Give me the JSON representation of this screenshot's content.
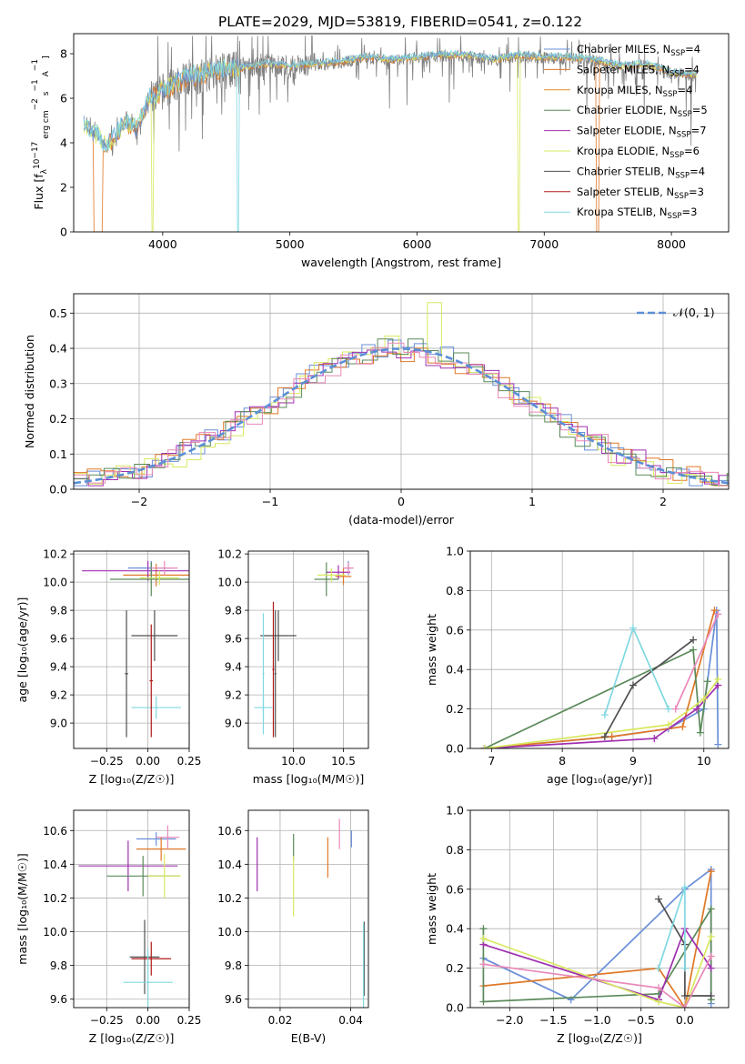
{
  "figure_title": "PLATE=2029, MJD=53819, FIBERID=0541, z=0.122",
  "series_colors": {
    "chabrier_miles": "#6a8fd8",
    "salpeter_miles": "#e07828",
    "kroupa_miles": "#e0902c",
    "chabrier_elodie": "#5a8a5a",
    "salpeter_elodie": "#a030b0",
    "kroupa_elodie": "#d8e860",
    "chabrier_stelib": "#505050",
    "salpeter_stelib": "#b01818",
    "kroupa_stelib": "#80d8e0",
    "pink": "#e888b8",
    "gray": "#808080",
    "normal": "#5b8fd6",
    "grid": "#b0b0b0"
  },
  "chart_data": [
    {
      "id": "spectrum",
      "type": "line",
      "title": "PLATE=2029, MJD=53819, FIBERID=0541, z=0.122",
      "xlabel": "wavelength [Angstrom, rest frame]",
      "ylabel_parts": [
        "Flux [f",
        "λ",
        "10",
        "−17",
        " erg cm",
        "−2",
        " s",
        "−1",
        " A",
        "−1",
        "]"
      ],
      "xlim": [
        3300,
        8450
      ],
      "ylim": [
        0,
        8.9
      ],
      "xticks": [
        4000,
        5000,
        6000,
        7000,
        8000
      ],
      "yticks": [
        0,
        2,
        4,
        6,
        8
      ],
      "legend": [
        {
          "name": "Chabrier MILES, N",
          "sub": "SSP",
          "val": "=4",
          "color_key": "chabrier_miles"
        },
        {
          "name": "Salpeter MILES, N",
          "sub": "SSP",
          "val": "=4",
          "color_key": "salpeter_miles"
        },
        {
          "name": "Kroupa MILES, N",
          "sub": "SSP",
          "val": "=4",
          "color_key": "kroupa_miles"
        },
        {
          "name": "Chabrier ELODIE, N",
          "sub": "SSP",
          "val": "=5",
          "color_key": "chabrier_elodie"
        },
        {
          "name": "Salpeter ELODIE, N",
          "sub": "SSP",
          "val": "=7",
          "color_key": "salpeter_elodie"
        },
        {
          "name": "Kroupa ELODIE, N",
          "sub": "SSP",
          "val": "=6",
          "color_key": "kroupa_elodie"
        },
        {
          "name": "Chabrier STELIB, N",
          "sub": "SSP",
          "val": "=4",
          "color_key": "chabrier_stelib"
        },
        {
          "name": "Salpeter STELIB, N",
          "sub": "SSP",
          "val": "=3",
          "color_key": "salpeter_stelib"
        },
        {
          "name": "Kroupa STELIB, N",
          "sub": "SSP",
          "val": "=3",
          "color_key": "kroupa_stelib"
        }
      ],
      "data_trend": {
        "x": [
          3380,
          3450,
          3500,
          3550,
          3600,
          3700,
          3800,
          3900,
          4000,
          4100,
          4200,
          4400,
          4600,
          4800,
          5000,
          5200,
          5400,
          5600,
          5800,
          6000,
          6200,
          6400,
          6600,
          6800,
          7000,
          7200,
          7400,
          7600,
          7800,
          8000,
          8200
        ],
        "y": [
          4.8,
          4.4,
          4.3,
          3.8,
          4.1,
          4.8,
          4.6,
          6.0,
          6.3,
          6.6,
          6.9,
          7.2,
          7.3,
          7.5,
          7.4,
          7.5,
          7.6,
          7.8,
          7.7,
          7.8,
          7.9,
          7.9,
          7.7,
          7.9,
          7.8,
          7.8,
          7.7,
          7.4,
          7.5,
          7.1,
          7.0
        ]
      },
      "model_dropouts": [
        {
          "series": "salpeter_miles",
          "x": 3520
        },
        {
          "series": "kroupa_elodie",
          "x": 3920
        },
        {
          "series": "kroupa_stelib",
          "x": 4590
        },
        {
          "series": "kroupa_elodie",
          "x": 6800
        },
        {
          "series": "salpeter_miles",
          "x": 7420
        }
      ]
    },
    {
      "id": "residuals",
      "type": "step",
      "xlabel": "(data-model)/error",
      "ylabel": "Normed distribution",
      "xlim": [
        -2.5,
        2.5
      ],
      "ylim": [
        0,
        0.555
      ],
      "xticks": [
        -2,
        -1,
        0,
        1,
        2
      ],
      "yticks": [
        0.0,
        0.1,
        0.2,
        0.3,
        0.4,
        0.5
      ],
      "legend": [
        {
          "name": "𝒩(0, 1)",
          "style": "dashed",
          "color_key": "normal"
        }
      ],
      "bin_width": 0.1,
      "series": [
        {
          "color_key": "chabrier_miles",
          "spread": 1.0
        },
        {
          "color_key": "salpeter_miles",
          "spread": 1.02
        },
        {
          "color_key": "kroupa_elodie",
          "spread": 0.97
        },
        {
          "color_key": "salpeter_elodie",
          "spread": 1.03
        },
        {
          "color_key": "chabrier_elodie",
          "spread": 0.99
        },
        {
          "color_key": "pink",
          "spread": 1.01
        }
      ]
    },
    {
      "id": "age_vs_Z",
      "type": "errorbar",
      "xlabel": "Z [log₁₀(Z/Z☉)]",
      "ylabel": "age  [log₁₀(age/yr)]",
      "xlim": [
        -0.45,
        0.25
      ],
      "ylim": [
        8.82,
        10.22
      ],
      "xticks": [
        -0.25,
        0.0,
        0.25
      ],
      "xtick_labels": [
        "−0.25",
        "0.00",
        "0.25"
      ],
      "yticks": [
        9.0,
        9.2,
        9.4,
        9.6,
        9.8,
        10.0,
        10.2
      ],
      "points": [
        {
          "x": 0.02,
          "y": 10.1,
          "xerr": 0.14,
          "yerr": 0.05,
          "c": "chabrier_miles"
        },
        {
          "x": 0.05,
          "y": 10.05,
          "xerr": 0.2,
          "yerr": 0.08,
          "c": "salpeter_miles"
        },
        {
          "x": 0.0,
          "y": 10.08,
          "xerr": 0.4,
          "yerr": 0.07,
          "c": "salpeter_elodie"
        },
        {
          "x": 0.02,
          "y": 10.02,
          "xerr": 0.25,
          "yerr": 0.12,
          "c": "chabrier_elodie"
        },
        {
          "x": 0.07,
          "y": 10.03,
          "xerr": 0.12,
          "yerr": 0.05,
          "c": "kroupa_elodie"
        },
        {
          "x": 0.1,
          "y": 10.1,
          "xerr": 0.08,
          "yerr": 0.05,
          "c": "pink"
        },
        {
          "x": 0.04,
          "y": 9.62,
          "xerr": 0.14,
          "yerr": 0.18,
          "c": "chabrier_stelib"
        },
        {
          "x": -0.13,
          "y": 9.35,
          "xerr": 0.01,
          "yerr": 0.45,
          "c": "chabrier_stelib"
        },
        {
          "x": 0.05,
          "y": 9.11,
          "xerr": 0.15,
          "yerr": 0.08,
          "c": "kroupa_stelib"
        },
        {
          "x": 0.02,
          "y": 9.3,
          "xerr": 0.01,
          "yerr": 0.4,
          "c": "salpeter_stelib"
        }
      ]
    },
    {
      "id": "age_vs_mass",
      "type": "errorbar",
      "xlabel": "mass [log₁₀(M/M☉)]",
      "ylabel": "",
      "xlim": [
        9.55,
        10.75
      ],
      "ylim": [
        8.82,
        10.22
      ],
      "xticks": [
        10.0,
        10.5
      ],
      "xtick_labels": [
        "10.0",
        "10.5"
      ],
      "yticks": [
        9.0,
        9.2,
        9.4,
        9.6,
        9.8,
        10.0,
        10.2
      ],
      "points": [
        {
          "x": 10.55,
          "y": 10.1,
          "xerr": 0.05,
          "yerr": 0.05,
          "c": "chabrier_miles"
        },
        {
          "x": 10.5,
          "y": 10.04,
          "xerr": 0.08,
          "yerr": 0.06,
          "c": "salpeter_miles"
        },
        {
          "x": 10.45,
          "y": 10.07,
          "xerr": 0.12,
          "yerr": 0.05,
          "c": "salpeter_elodie"
        },
        {
          "x": 10.33,
          "y": 10.02,
          "xerr": 0.12,
          "yerr": 0.12,
          "c": "chabrier_elodie"
        },
        {
          "x": 10.38,
          "y": 10.05,
          "xerr": 0.14,
          "yerr": 0.05,
          "c": "kroupa_elodie"
        },
        {
          "x": 10.55,
          "y": 10.1,
          "xerr": 0.05,
          "yerr": 0.04,
          "c": "pink"
        },
        {
          "x": 9.85,
          "y": 9.62,
          "xerr": 0.18,
          "yerr": 0.18,
          "c": "chabrier_stelib"
        },
        {
          "x": 9.82,
          "y": 9.35,
          "xerr": 0.01,
          "yerr": 0.45,
          "c": "chabrier_stelib"
        },
        {
          "x": 9.7,
          "y": 9.11,
          "xerr": 0.09,
          "yerr": 0.08,
          "c": "kroupa_stelib"
        },
        {
          "x": 9.7,
          "y": 9.35,
          "xerr": 0.01,
          "yerr": 0.43,
          "c": "kroupa_stelib"
        },
        {
          "x": 9.8,
          "y": 9.38,
          "xerr": 0.01,
          "yerr": 0.48,
          "c": "salpeter_stelib"
        }
      ]
    },
    {
      "id": "weight_vs_age",
      "type": "line",
      "xlabel": "age  [log₁₀(age/yr)]",
      "ylabel": "mass weight",
      "xlim": [
        6.7,
        10.35
      ],
      "ylim": [
        0,
        1.0
      ],
      "xticks": [
        7,
        8,
        9,
        10
      ],
      "yticks": [
        0.0,
        0.2,
        0.4,
        0.6,
        0.8,
        1.0
      ],
      "series": [
        {
          "c": "chabrier_miles",
          "x": [
            6.9,
            8.7,
            9.5,
            10.0,
            10.18,
            10.2
          ],
          "y": [
            0.0,
            0.06,
            0.1,
            0.2,
            0.7,
            0.02
          ]
        },
        {
          "c": "salpeter_miles",
          "x": [
            6.9,
            8.7,
            9.7,
            10.15
          ],
          "y": [
            0.0,
            0.06,
            0.11,
            0.7
          ]
        },
        {
          "c": "chabrier_elodie",
          "x": [
            6.9,
            9.85,
            9.95,
            10.05
          ],
          "y": [
            0.0,
            0.5,
            0.08,
            0.34
          ]
        },
        {
          "c": "salpeter_elodie",
          "x": [
            6.9,
            9.3,
            9.9,
            10.2
          ],
          "y": [
            0.0,
            0.05,
            0.2,
            0.32
          ]
        },
        {
          "c": "kroupa_elodie",
          "x": [
            6.9,
            9.5,
            10.0,
            10.2
          ],
          "y": [
            0.0,
            0.12,
            0.25,
            0.35
          ]
        },
        {
          "c": "chabrier_stelib",
          "x": [
            8.6,
            9.0,
            9.85
          ],
          "y": [
            0.06,
            0.32,
            0.55
          ]
        },
        {
          "c": "kroupa_stelib",
          "x": [
            8.6,
            9.0,
            9.5
          ],
          "y": [
            0.17,
            0.61,
            0.2
          ]
        },
        {
          "c": "pink",
          "x": [
            9.6,
            10.2
          ],
          "y": [
            0.2,
            0.68
          ]
        }
      ]
    },
    {
      "id": "mass_vs_Z",
      "type": "errorbar",
      "xlabel": "Z [log₁₀(Z/Z☉)]",
      "ylabel": "mass [log₁₀(M/M☉)]",
      "xlim": [
        -0.45,
        0.25
      ],
      "ylim": [
        9.55,
        10.72
      ],
      "xticks": [
        -0.25,
        0.0,
        0.25
      ],
      "xtick_labels": [
        "−0.25",
        "0.00",
        "0.25"
      ],
      "yticks": [
        9.6,
        9.8,
        10.0,
        10.2,
        10.4,
        10.6
      ],
      "points": [
        {
          "x": 0.05,
          "y": 10.55,
          "xerr": 0.12,
          "yerr": 0.04,
          "c": "chabrier_miles"
        },
        {
          "x": 0.08,
          "y": 10.49,
          "xerr": 0.15,
          "yerr": 0.07,
          "c": "salpeter_miles"
        },
        {
          "x": -0.12,
          "y": 10.39,
          "xerr": 0.3,
          "yerr": 0.15,
          "c": "salpeter_elodie"
        },
        {
          "x": -0.03,
          "y": 10.33,
          "xerr": 0.22,
          "yerr": 0.12,
          "c": "chabrier_elodie"
        },
        {
          "x": 0.1,
          "y": 10.33,
          "xerr": 0.1,
          "yerr": 0.13,
          "c": "kroupa_elodie"
        },
        {
          "x": 0.12,
          "y": 10.56,
          "xerr": 0.07,
          "yerr": 0.07,
          "c": "pink"
        },
        {
          "x": -0.02,
          "y": 9.85,
          "xerr": 0.09,
          "yerr": 0.22,
          "c": "chabrier_stelib"
        },
        {
          "x": 0.02,
          "y": 9.84,
          "xerr": 0.12,
          "yerr": 0.1,
          "c": "salpeter_stelib"
        },
        {
          "x": 0.0,
          "y": 9.7,
          "xerr": 0.15,
          "yerr": 0.2,
          "c": "kroupa_stelib"
        }
      ]
    },
    {
      "id": "mass_vs_EBV",
      "type": "errorbar",
      "xlabel": "E(B-V)",
      "ylabel": "",
      "xlim": [
        0.011,
        0.045
      ],
      "ylim": [
        9.55,
        10.72
      ],
      "xticks": [
        0.02,
        0.04
      ],
      "xtick_labels": [
        "0.02",
        "0.04"
      ],
      "yticks": [
        9.6,
        9.8,
        10.0,
        10.2,
        10.4,
        10.6
      ],
      "points": [
        {
          "x": 0.0402,
          "y": 10.55,
          "xerr": 0,
          "yerr": 0.05,
          "c": "chabrier_miles"
        },
        {
          "x": 0.0335,
          "y": 10.44,
          "xerr": 0,
          "yerr": 0.12,
          "c": "salpeter_miles"
        },
        {
          "x": 0.0135,
          "y": 10.4,
          "xerr": 0,
          "yerr": 0.16,
          "c": "salpeter_elodie"
        },
        {
          "x": 0.0238,
          "y": 10.5,
          "xerr": 0,
          "yerr": 0.08,
          "c": "chabrier_elodie"
        },
        {
          "x": 0.0238,
          "y": 10.27,
          "xerr": 0,
          "yerr": 0.18,
          "c": "kroupa_elodie"
        },
        {
          "x": 0.0368,
          "y": 10.58,
          "xerr": 0,
          "yerr": 0.09,
          "c": "pink"
        },
        {
          "x": 0.0438,
          "y": 9.84,
          "xerr": 0,
          "yerr": 0.22,
          "c": "chabrier_stelib"
        },
        {
          "x": 0.0436,
          "y": 9.8,
          "xerr": 0,
          "yerr": 0.25,
          "c": "kroupa_stelib"
        }
      ]
    },
    {
      "id": "weight_vs_Z",
      "type": "line",
      "xlabel": "Z [log₁₀(Z/Z☉)]",
      "ylabel": "mass weight",
      "xlim": [
        -2.45,
        0.5
      ],
      "ylim": [
        0,
        1.0
      ],
      "xticks": [
        -2.0,
        -1.5,
        -1.0,
        -0.5,
        0.0
      ],
      "xtick_labels": [
        "−2.0",
        "−1.5",
        "−1.0",
        "−0.5",
        "0.0"
      ],
      "yticks": [
        0.0,
        0.2,
        0.4,
        0.6,
        0.8,
        1.0
      ],
      "series": [
        {
          "c": "chabrier_miles",
          "x": [
            -2.3,
            -1.3,
            0.0,
            0.3,
            0.3
          ],
          "y": [
            0.25,
            0.04,
            0.6,
            0.7,
            0.02
          ]
        },
        {
          "c": "salpeter_miles",
          "x": [
            -2.3,
            -0.3,
            0.0,
            0.3
          ],
          "y": [
            0.11,
            0.2,
            0.0,
            0.69
          ]
        },
        {
          "c": "chabrier_elodie",
          "x": [
            -2.3,
            -2.3,
            -0.3,
            0.3,
            0.3
          ],
          "y": [
            0.4,
            0.03,
            0.07,
            0.5,
            0.04
          ]
        },
        {
          "c": "salpeter_elodie",
          "x": [
            -2.3,
            -0.3,
            0.0,
            0.3
          ],
          "y": [
            0.32,
            0.04,
            0.4,
            0.2
          ]
        },
        {
          "c": "kroupa_elodie",
          "x": [
            -2.3,
            -0.3,
            0.0,
            0.3
          ],
          "y": [
            0.35,
            0.03,
            0.0,
            0.36
          ]
        },
        {
          "c": "chabrier_stelib",
          "x": [
            -0.3,
            0.0,
            0.0,
            0.3
          ],
          "y": [
            0.55,
            0.32,
            0.06,
            0.06
          ]
        },
        {
          "c": "kroupa_stelib",
          "x": [
            -0.3,
            0.0,
            0.0
          ],
          "y": [
            0.2,
            0.61,
            0.2
          ]
        },
        {
          "c": "pink",
          "x": [
            -2.3,
            -0.3,
            0.0,
            0.3
          ],
          "y": [
            0.22,
            0.1,
            0.0,
            0.26
          ]
        }
      ]
    }
  ]
}
